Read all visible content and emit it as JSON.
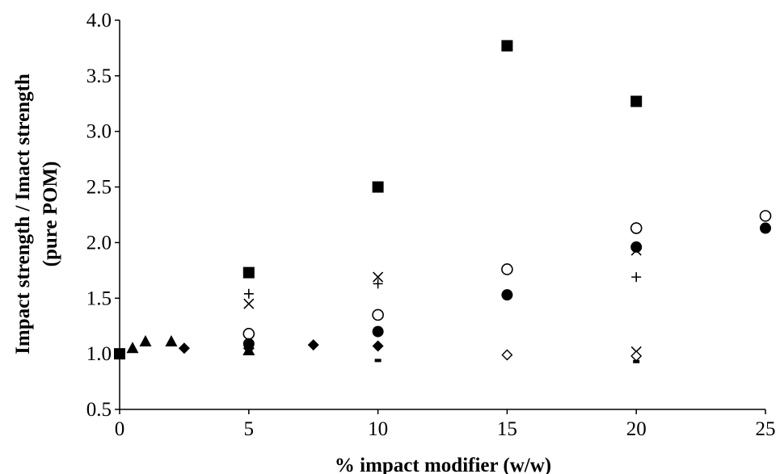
{
  "chart_data": {
    "type": "scatter",
    "title": "",
    "xlabel": "% impact modifier (w/w)",
    "ylabel_line1": "Impact strength / Imact strength",
    "ylabel_line2": "(pure POM)",
    "xlim": [
      0,
      25
    ],
    "ylim": [
      0.5,
      4.0
    ],
    "x_ticks": [
      "0",
      "5",
      "10",
      "15",
      "20",
      "25"
    ],
    "y_ticks": [
      "0.5",
      "1.0",
      "1.5",
      "2.0",
      "2.5",
      "3.0",
      "3.5",
      "4.0"
    ],
    "grid": false,
    "legend": "none",
    "series": [
      {
        "marker": "filled-square",
        "points": [
          [
            0,
            1.0
          ],
          [
            5,
            1.73
          ],
          [
            10,
            2.5
          ],
          [
            15,
            3.77
          ],
          [
            20,
            3.27
          ]
        ]
      },
      {
        "marker": "open-circle",
        "points": [
          [
            5,
            1.18
          ],
          [
            10,
            1.35
          ],
          [
            15,
            1.76
          ],
          [
            20,
            2.13
          ],
          [
            25,
            2.24
          ]
        ]
      },
      {
        "marker": "filled-circle",
        "points": [
          [
            5,
            1.09
          ],
          [
            10,
            1.2
          ],
          [
            15,
            1.53
          ],
          [
            20,
            1.96
          ],
          [
            25,
            2.13
          ]
        ]
      },
      {
        "marker": "cross-x",
        "points": [
          [
            5,
            1.45
          ],
          [
            10,
            1.69
          ],
          [
            20,
            1.93
          ],
          [
            20,
            1.02
          ]
        ]
      },
      {
        "marker": "plus",
        "points": [
          [
            5,
            1.54
          ],
          [
            10,
            1.63
          ],
          [
            20,
            1.69
          ]
        ]
      },
      {
        "marker": "filled-triangle",
        "points": [
          [
            0.5,
            1.05
          ],
          [
            1,
            1.11
          ],
          [
            2,
            1.11
          ],
          [
            5,
            1.03
          ]
        ]
      },
      {
        "marker": "filled-diamond",
        "points": [
          [
            0,
            1.0
          ],
          [
            2.5,
            1.05
          ],
          [
            5,
            1.05
          ],
          [
            7.5,
            1.08
          ],
          [
            10,
            1.07
          ]
        ]
      },
      {
        "marker": "open-diamond",
        "points": [
          [
            15,
            0.99
          ],
          [
            20,
            0.98
          ]
        ]
      },
      {
        "marker": "dash",
        "points": [
          [
            10,
            0.94
          ],
          [
            20,
            0.93
          ]
        ]
      }
    ]
  }
}
